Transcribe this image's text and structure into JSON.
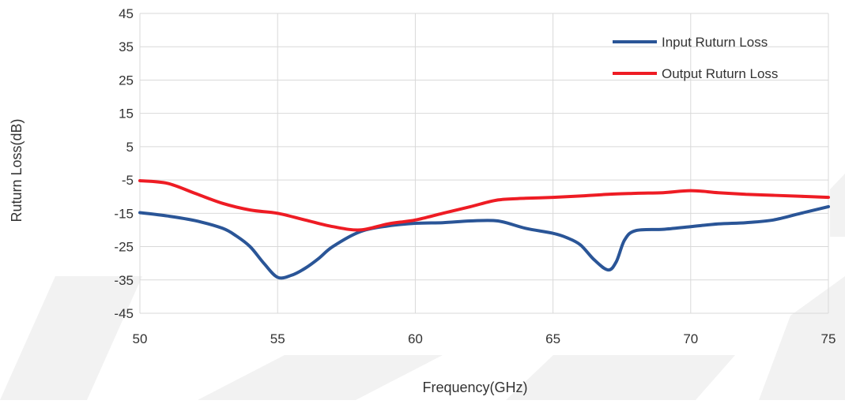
{
  "chart_data": {
    "type": "line",
    "title": "",
    "xlabel": "Frequency(GHz)",
    "ylabel": "Ruturn Loss(dB)",
    "xlim": [
      50,
      75
    ],
    "ylim": [
      -45,
      45
    ],
    "x_ticks": [
      50,
      55,
      60,
      65,
      70,
      75
    ],
    "y_ticks": [
      45,
      35,
      25,
      15,
      5,
      -5,
      -15,
      -25,
      -35,
      -45
    ],
    "x_tick_labels": [
      "50",
      "55",
      "60",
      "65",
      "70",
      "75"
    ],
    "y_tick_labels": [
      "45",
      "35",
      "25",
      "15",
      "5",
      "-5",
      "-15",
      "-25",
      "-35",
      "-45"
    ],
    "grid": true,
    "legend_position": "top-right",
    "series": [
      {
        "name": "Input Ruturn Loss",
        "color": "#2a5597",
        "points": [
          [
            50,
            -14.8
          ],
          [
            51,
            -15.8
          ],
          [
            52,
            -17.2
          ],
          [
            53,
            -19.5
          ],
          [
            53.5,
            -21.8
          ],
          [
            54,
            -25
          ],
          [
            54.5,
            -30
          ],
          [
            55,
            -34.2
          ],
          [
            55.5,
            -33.6
          ],
          [
            56,
            -31.5
          ],
          [
            56.5,
            -28.5
          ],
          [
            57,
            -25
          ],
          [
            58,
            -20.5
          ],
          [
            59,
            -18.8
          ],
          [
            60,
            -18
          ],
          [
            61,
            -17.8
          ],
          [
            62,
            -17.3
          ],
          [
            63,
            -17.3
          ],
          [
            64,
            -19.5
          ],
          [
            65,
            -21
          ],
          [
            65.5,
            -22.3
          ],
          [
            66,
            -24.5
          ],
          [
            66.5,
            -29
          ],
          [
            67,
            -32
          ],
          [
            67.3,
            -29.5
          ],
          [
            67.6,
            -23
          ],
          [
            68,
            -20.2
          ],
          [
            69,
            -19.8
          ],
          [
            70,
            -19
          ],
          [
            71,
            -18.2
          ],
          [
            72,
            -17.8
          ],
          [
            73,
            -17
          ],
          [
            74,
            -15
          ],
          [
            75,
            -13
          ]
        ]
      },
      {
        "name": "Output Ruturn Loss",
        "color": "#ee1c24",
        "points": [
          [
            50,
            -5.2
          ],
          [
            51,
            -6
          ],
          [
            52,
            -9
          ],
          [
            53,
            -12
          ],
          [
            54,
            -14
          ],
          [
            55,
            -15
          ],
          [
            56,
            -17
          ],
          [
            57,
            -19
          ],
          [
            58,
            -20
          ],
          [
            59,
            -18.2
          ],
          [
            60,
            -17
          ],
          [
            61,
            -15
          ],
          [
            62,
            -13
          ],
          [
            63,
            -11
          ],
          [
            64,
            -10.5
          ],
          [
            65,
            -10.2
          ],
          [
            66,
            -9.8
          ],
          [
            67,
            -9.3
          ],
          [
            68,
            -9
          ],
          [
            69,
            -8.8
          ],
          [
            70,
            -8.2
          ],
          [
            71,
            -8.8
          ],
          [
            72,
            -9.3
          ],
          [
            73,
            -9.6
          ],
          [
            74,
            -9.9
          ],
          [
            75,
            -10.2
          ]
        ]
      }
    ]
  }
}
